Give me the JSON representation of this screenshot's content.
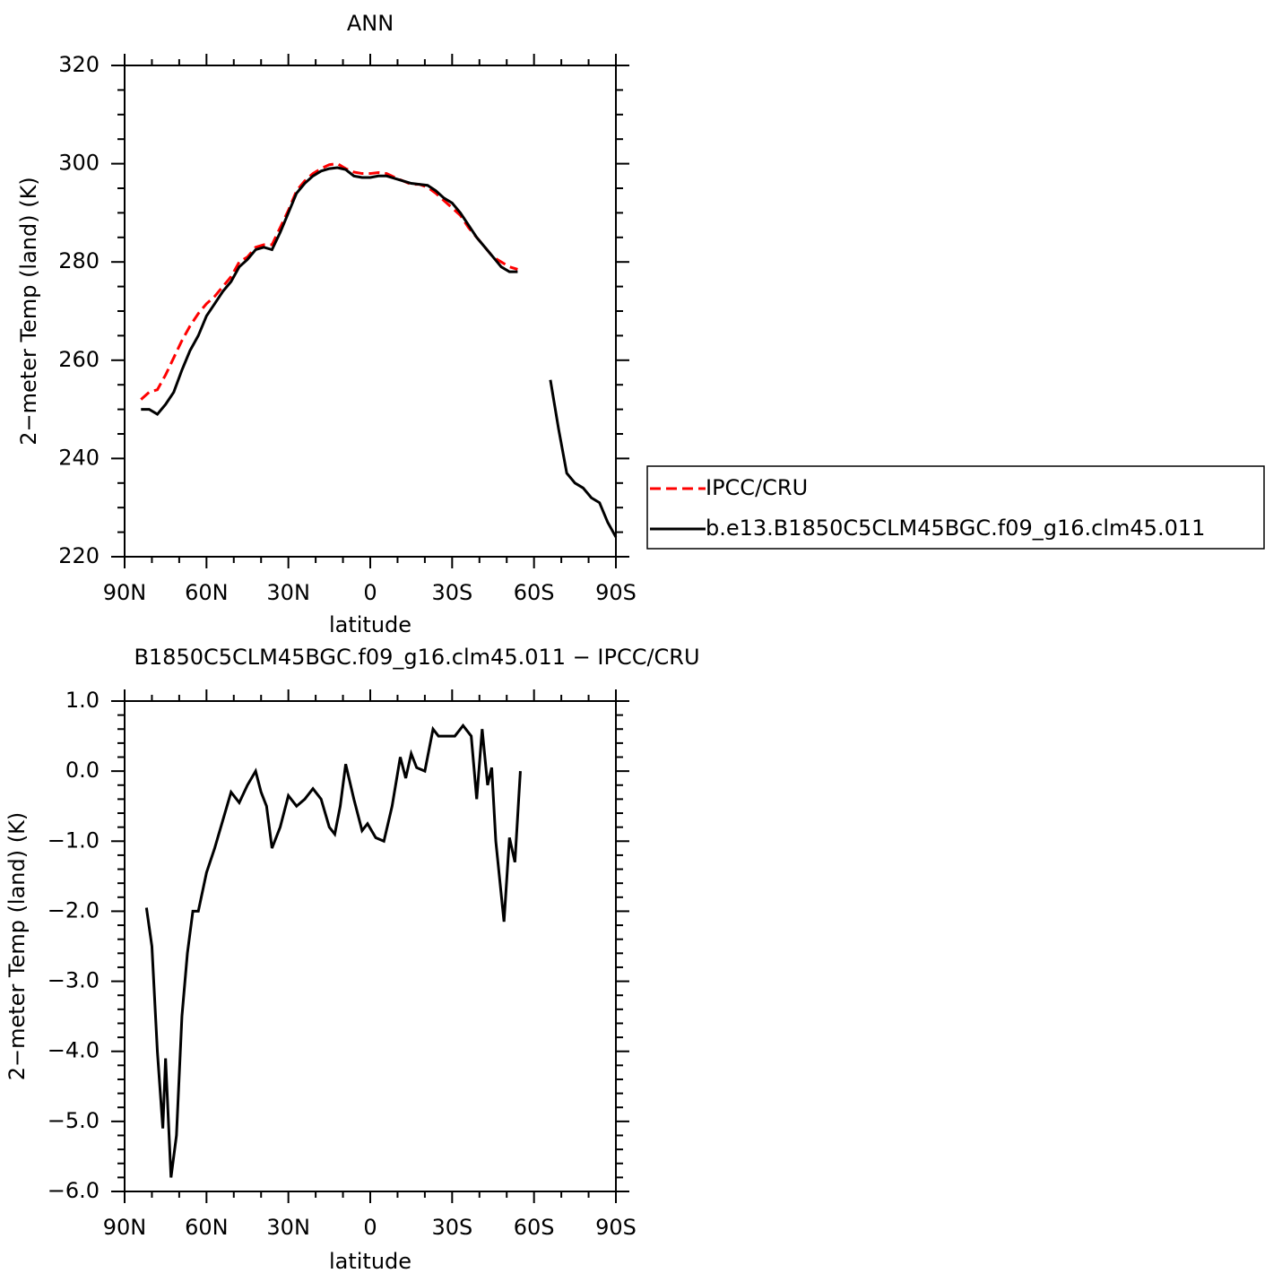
{
  "chart_data": [
    {
      "type": "line",
      "title": "ANN",
      "xlabel": "latitude",
      "ylabel": "2−meter Temp (land) (K)",
      "x": [
        84,
        81,
        78,
        75,
        72,
        69,
        66,
        63,
        60,
        57,
        54,
        51,
        48,
        45,
        42,
        39,
        36,
        33,
        30,
        27,
        24,
        21,
        18,
        15,
        12,
        9,
        6,
        3,
        0,
        -3,
        -6,
        -9,
        -12,
        -15,
        -18,
        -21,
        -24,
        -27,
        -30,
        -33,
        -36,
        -39,
        -42,
        -45,
        -48,
        -51,
        -54,
        -57,
        -60,
        -63,
        -66,
        -69,
        -72,
        -75,
        -78,
        -81,
        -84,
        -87,
        -90
      ],
      "series": [
        {
          "name": "IPCC/CRU",
          "color": "#ff0000",
          "line_style": "dashed",
          "values": [
            252,
            253.5,
            254,
            257,
            260.5,
            264,
            267,
            269.5,
            271.5,
            273,
            275,
            277,
            280,
            281,
            283,
            283.5,
            283.5,
            287,
            290.5,
            294.5,
            296.5,
            298,
            299,
            299.8,
            300,
            299,
            298.3,
            298,
            298,
            298.2,
            298,
            297.2,
            296.5,
            295.8,
            295.8,
            295.2,
            294,
            292.5,
            291,
            289.5,
            287,
            285,
            283,
            281,
            280,
            279,
            278.5,
            null,
            null,
            null,
            null,
            null,
            null,
            null,
            null,
            null,
            null,
            null,
            null
          ]
        },
        {
          "name": "b.e13.B1850C5CLM45BGC.f09_g16.clm45.011",
          "color": "#000000",
          "line_style": "solid",
          "values": [
            250,
            250,
            249,
            251,
            253.5,
            258,
            262,
            265,
            269,
            271.5,
            274,
            276,
            279,
            280.5,
            282.5,
            283,
            282.5,
            286,
            290,
            294,
            296,
            297.5,
            298.5,
            299,
            299.2,
            298.8,
            297.5,
            297.2,
            297.2,
            297.5,
            297.5,
            297,
            296.5,
            296,
            295.8,
            295.6,
            294.5,
            293,
            292,
            290,
            287.5,
            285,
            283,
            281,
            279,
            278,
            278,
            null,
            null,
            null,
            256,
            246,
            237,
            235,
            234,
            232,
            231,
            227,
            224
          ]
        }
      ],
      "xlim": [
        90,
        -90
      ],
      "xticks": [
        {
          "value": 90,
          "label": "90N"
        },
        {
          "value": 60,
          "label": "60N"
        },
        {
          "value": 30,
          "label": "30N"
        },
        0,
        {
          "value": -30,
          "label": "30S"
        },
        {
          "value": -60,
          "label": "60S"
        },
        {
          "value": -90,
          "label": "90S"
        }
      ],
      "xminorticks": [
        80,
        70,
        50,
        40,
        20,
        10,
        -10,
        -20,
        -40,
        -50,
        -70,
        -80
      ],
      "ylim": [
        220,
        320
      ],
      "yticks": [
        220,
        240,
        260,
        280,
        300,
        320
      ],
      "yminorticks": [
        225,
        230,
        235,
        245,
        250,
        255,
        265,
        270,
        275,
        285,
        290,
        295,
        305,
        310,
        315
      ],
      "legend": "outside-right"
    },
    {
      "type": "line",
      "title": "B1850C5CLM45BGC.f09_g16.clm45.011 − IPCC/CRU",
      "xlabel": "latitude",
      "ylabel": "2−meter Temp (land) (K)",
      "x": [
        82,
        80,
        78,
        76,
        75,
        73,
        71,
        69,
        67,
        65,
        63,
        60,
        57,
        54,
        51,
        48,
        45,
        42,
        40,
        38,
        36,
        33,
        30,
        27,
        24,
        21,
        18,
        15,
        13,
        11,
        9,
        6,
        3,
        1,
        -2,
        -5,
        -8,
        -11,
        -13,
        -15,
        -17,
        -20,
        -23,
        -25,
        -28,
        -31,
        -34,
        -37,
        -39,
        -41,
        -43,
        -44.5,
        -46,
        -49,
        -51,
        -53,
        -55
      ],
      "series": [
        {
          "color": "#000000",
          "line_style": "solid",
          "values": [
            -1.95,
            -2.5,
            -4.0,
            -5.1,
            -4.1,
            -5.8,
            -5.2,
            -3.5,
            -2.6,
            -2.0,
            -2.0,
            -1.45,
            -1.1,
            -0.7,
            -0.3,
            -0.45,
            -0.2,
            0.0,
            -0.3,
            -0.5,
            -1.1,
            -0.8,
            -0.35,
            -0.5,
            -0.4,
            -0.25,
            -0.4,
            -0.8,
            -0.9,
            -0.5,
            0.1,
            -0.4,
            -0.85,
            -0.75,
            -0.95,
            -1.0,
            -0.5,
            0.2,
            -0.1,
            0.25,
            0.05,
            0.0,
            0.6,
            0.5,
            0.5,
            0.5,
            0.65,
            0.5,
            -0.4,
            0.6,
            -0.2,
            0.05,
            -1.0,
            -2.15,
            -0.95,
            -1.3,
            0.0
          ]
        }
      ],
      "xlim": [
        90,
        -90
      ],
      "xticks": [
        {
          "value": 90,
          "label": "90N"
        },
        {
          "value": 60,
          "label": "60N"
        },
        {
          "value": 30,
          "label": "30N"
        },
        0,
        {
          "value": -30,
          "label": "30S"
        },
        {
          "value": -60,
          "label": "60S"
        },
        {
          "value": -90,
          "label": "90S"
        }
      ],
      "xminorticks": [
        80,
        70,
        50,
        40,
        20,
        10,
        -10,
        -20,
        -40,
        -50,
        -70,
        -80
      ],
      "ylim": [
        -6,
        1
      ],
      "yticks": [
        {
          "value": -6,
          "label": "−6.0"
        },
        {
          "value": -5,
          "label": "−5.0"
        },
        {
          "value": -4,
          "label": "−4.0"
        },
        {
          "value": -3,
          "label": "−3.0"
        },
        {
          "value": -2,
          "label": "−2.0"
        },
        {
          "value": -1,
          "label": "−1.0"
        },
        {
          "value": 0,
          "label": "0.0"
        },
        {
          "value": 1,
          "label": "1.0"
        }
      ],
      "yminorticks": [
        -5.8,
        -5.6,
        -5.4,
        -5.2,
        -4.8,
        -4.6,
        -4.4,
        -4.2,
        -3.8,
        -3.6,
        -3.4,
        -3.2,
        -2.8,
        -2.6,
        -2.4,
        -2.2,
        -1.8,
        -1.6,
        -1.4,
        -1.2,
        -0.8,
        -0.6,
        -0.4,
        -0.2,
        0.2,
        0.4,
        0.6,
        0.8
      ]
    }
  ]
}
